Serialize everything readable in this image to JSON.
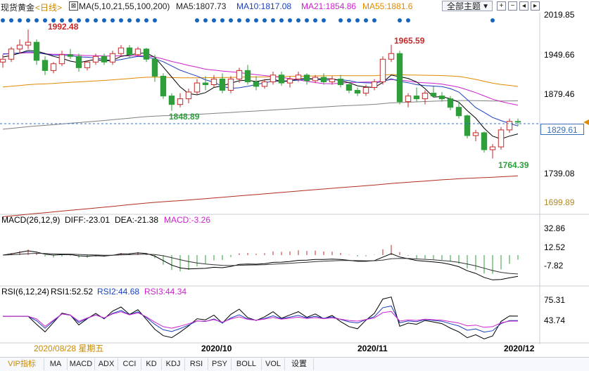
{
  "header": {
    "symbol": "现货黄金",
    "period": "<日线>",
    "ma_label": "MA(5,10,21,55,100,200)",
    "ma5": "MA5:1807.73",
    "ma10": "MA10:1817.08",
    "ma21": "MA21:1854.86",
    "ma55": "MA55:1881.6",
    "theme_button": "全部主题",
    "colors": {
      "ma5": "#000000",
      "ma10": "#1a3fbf",
      "ma21": "#cc22cc",
      "ma55": "#e08a00",
      "ma100": "#808080",
      "ma200": "#b03020",
      "up": "#c62828",
      "down": "#2e9e3a",
      "dots": "#1565c0"
    }
  },
  "price_panel": {
    "y_ticks": [
      "2019.85",
      "1949.66",
      "1879.46",
      "1739.08",
      "1699.89"
    ],
    "current_price": "1829.61",
    "annotations": [
      {
        "text": "1992.48",
        "color": "#c62828"
      },
      {
        "text": "1965.59",
        "color": "#c62828"
      },
      {
        "text": "1848.89",
        "color": "#2e9e3a"
      },
      {
        "text": "1764.39",
        "color": "#2e9e3a"
      }
    ]
  },
  "macd_panel": {
    "label": "MACD(26,12,9)",
    "diff": "DIFF:-23.01",
    "dea": "DEA:-21.38",
    "macd": "MACD:-3.26",
    "y_ticks": [
      "32.86",
      "12.52",
      "-7.82"
    ]
  },
  "rsi_panel": {
    "label": "RSI(6,12,24)",
    "rsi1": "RSI1:52.52",
    "rsi2": "RSI2:44.68",
    "rsi3": "RSI3:44.34",
    "y_ticks": [
      "75.31",
      "43.74"
    ]
  },
  "x_axis": {
    "start_label": "2020/08/28 星期五",
    "labels": [
      "2020/10",
      "2020/11",
      "2020/12"
    ]
  },
  "tabs": [
    "VIP指标",
    "MA",
    "MACD",
    "ADX",
    "CCI",
    "KD",
    "KDJ",
    "RSI",
    "PSY",
    "BOLL",
    "VOL",
    "设置"
  ],
  "chart_data": {
    "type": "candlestick",
    "title": "现货黄金 日线",
    "ylim": [
      1699.89,
      2019.85
    ],
    "candles": [
      [
        1935,
        1948,
        1925,
        1940
      ],
      [
        1940,
        1962,
        1935,
        1958
      ],
      [
        1958,
        1975,
        1950,
        1965
      ],
      [
        1965,
        1992.48,
        1958,
        1970
      ],
      [
        1970,
        1975,
        1930,
        1938
      ],
      [
        1938,
        1945,
        1912,
        1920
      ],
      [
        1920,
        1935,
        1915,
        1932
      ],
      [
        1932,
        1955,
        1928,
        1948
      ],
      [
        1948,
        1958,
        1940,
        1945
      ],
      [
        1945,
        1950,
        1918,
        1925
      ],
      [
        1925,
        1938,
        1920,
        1935
      ],
      [
        1935,
        1950,
        1930,
        1945
      ],
      [
        1945,
        1950,
        1930,
        1935
      ],
      [
        1935,
        1955,
        1930,
        1950
      ],
      [
        1950,
        1965,
        1945,
        1960
      ],
      [
        1960,
        1965,
        1942,
        1948
      ],
      [
        1948,
        1962,
        1945,
        1958
      ],
      [
        1958,
        1960,
        1935,
        1940
      ],
      [
        1940,
        1948,
        1900,
        1910
      ],
      [
        1910,
        1915,
        1870,
        1875
      ],
      [
        1875,
        1880,
        1848.89,
        1860
      ],
      [
        1860,
        1880,
        1855,
        1870
      ],
      [
        1870,
        1888,
        1862,
        1882
      ],
      [
        1882,
        1905,
        1878,
        1898
      ],
      [
        1898,
        1910,
        1885,
        1895
      ],
      [
        1895,
        1912,
        1890,
        1905
      ],
      [
        1905,
        1915,
        1880,
        1885
      ],
      [
        1885,
        1910,
        1880,
        1905
      ],
      [
        1905,
        1925,
        1898,
        1920
      ],
      [
        1920,
        1930,
        1895,
        1900
      ],
      [
        1900,
        1910,
        1885,
        1892
      ],
      [
        1892,
        1905,
        1888,
        1900
      ],
      [
        1900,
        1918,
        1895,
        1912
      ],
      [
        1912,
        1918,
        1893,
        1898
      ],
      [
        1898,
        1910,
        1890,
        1905
      ],
      [
        1905,
        1918,
        1900,
        1912
      ],
      [
        1912,
        1915,
        1895,
        1902
      ],
      [
        1902,
        1912,
        1898,
        1908
      ],
      [
        1908,
        1915,
        1895,
        1900
      ],
      [
        1900,
        1910,
        1895,
        1905
      ],
      [
        1905,
        1912,
        1890,
        1895
      ],
      [
        1895,
        1900,
        1880,
        1885
      ],
      [
        1885,
        1890,
        1875,
        1880
      ],
      [
        1880,
        1895,
        1875,
        1890
      ],
      [
        1890,
        1905,
        1885,
        1900
      ],
      [
        1900,
        1945,
        1895,
        1940
      ],
      [
        1940,
        1965.59,
        1935,
        1950
      ],
      [
        1950,
        1955,
        1860,
        1865
      ],
      [
        1865,
        1880,
        1855,
        1875
      ],
      [
        1875,
        1890,
        1865,
        1870
      ],
      [
        1870,
        1885,
        1860,
        1880
      ],
      [
        1880,
        1892,
        1872,
        1875
      ],
      [
        1875,
        1882,
        1865,
        1870
      ],
      [
        1870,
        1875,
        1850,
        1855
      ],
      [
        1855,
        1865,
        1835,
        1840
      ],
      [
        1840,
        1842,
        1800,
        1805
      ],
      [
        1805,
        1815,
        1795,
        1810
      ],
      [
        1810,
        1812,
        1775,
        1780
      ],
      [
        1780,
        1790,
        1764.39,
        1785
      ],
      [
        1785,
        1820,
        1780,
        1815
      ],
      [
        1815,
        1835,
        1810,
        1830
      ],
      [
        1830,
        1835,
        1822,
        1829.61
      ]
    ]
  }
}
